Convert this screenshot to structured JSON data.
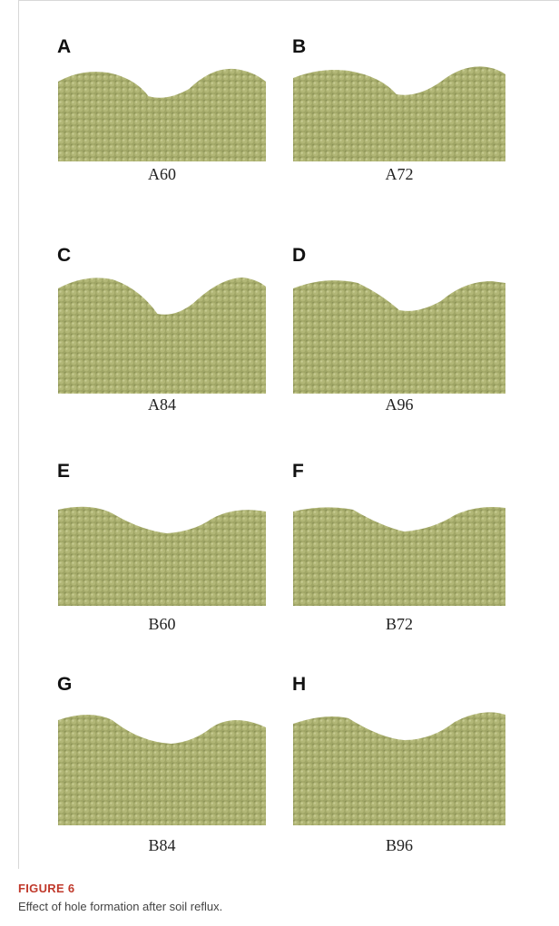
{
  "figure": {
    "panels": [
      {
        "letter": "A",
        "label": "A60"
      },
      {
        "letter": "B",
        "label": "A72"
      },
      {
        "letter": "C",
        "label": "A84"
      },
      {
        "letter": "D",
        "label": "A96"
      },
      {
        "letter": "E",
        "label": "B60"
      },
      {
        "letter": "F",
        "label": "B72"
      },
      {
        "letter": "G",
        "label": "B84"
      },
      {
        "letter": "H",
        "label": "B96"
      }
    ],
    "caption": {
      "number": "FIGURE 6",
      "text": "Effect of hole formation after soil reflux."
    }
  }
}
